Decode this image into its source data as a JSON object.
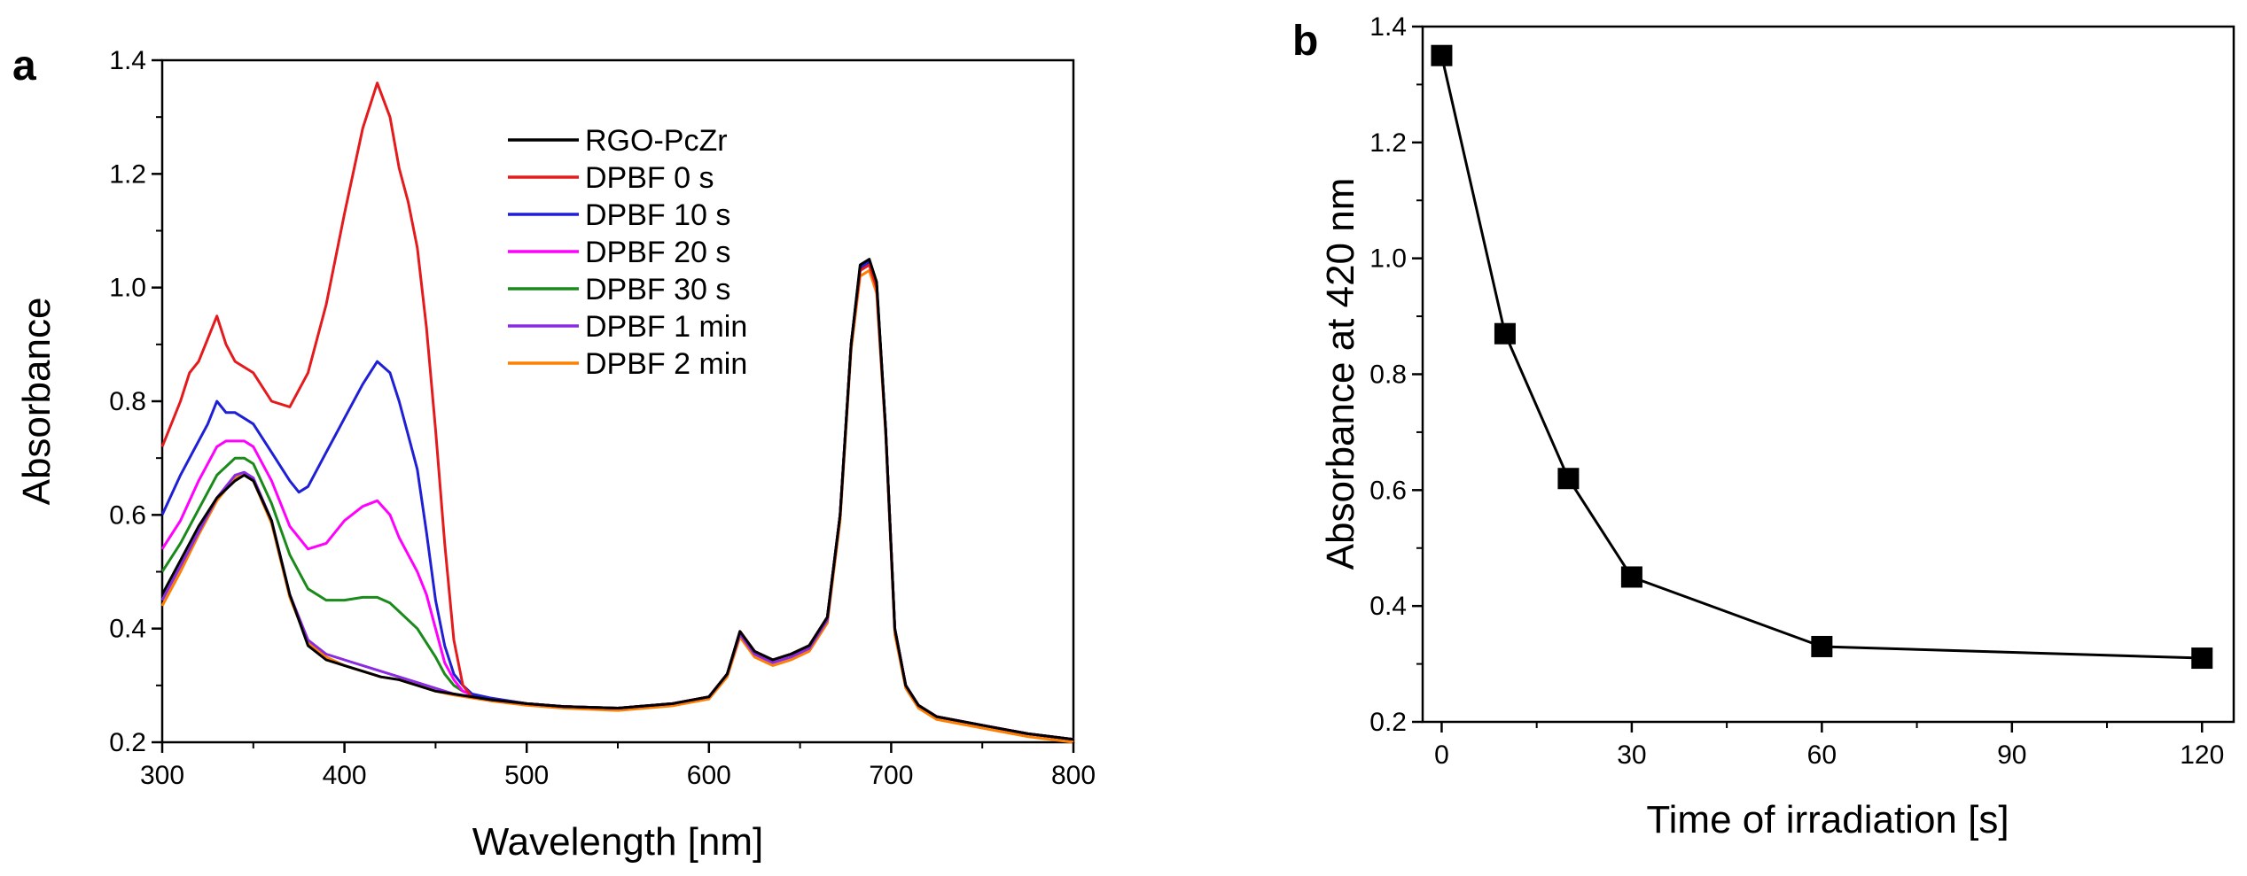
{
  "chart_data": [
    {
      "type": "line",
      "panel": "a",
      "title": "",
      "xlabel": "Wavelength [nm]",
      "ylabel": "Absorbance",
      "xlim": [
        300,
        800
      ],
      "ylim": [
        0.2,
        1.4
      ],
      "xticks": [
        300,
        400,
        500,
        600,
        700,
        800
      ],
      "yticks": [
        0.2,
        0.4,
        0.6,
        0.8,
        1.0,
        1.2,
        1.4
      ],
      "legend_position": "top-center",
      "series": [
        {
          "name": "RGO-PcZr",
          "color": "#000000",
          "x": [
            300,
            310,
            320,
            330,
            340,
            345,
            350,
            360,
            370,
            380,
            390,
            400,
            410,
            420,
            430,
            440,
            450,
            460,
            470,
            480,
            500,
            520,
            550,
            580,
            600,
            610,
            617,
            625,
            635,
            645,
            655,
            665,
            672,
            678,
            683,
            688,
            692,
            697,
            702,
            708,
            715,
            725,
            750,
            775,
            800
          ],
          "y": [
            0.46,
            0.52,
            0.58,
            0.63,
            0.66,
            0.67,
            0.66,
            0.59,
            0.46,
            0.37,
            0.345,
            0.335,
            0.325,
            0.315,
            0.31,
            0.3,
            0.29,
            0.285,
            0.28,
            0.275,
            0.268,
            0.263,
            0.26,
            0.268,
            0.28,
            0.32,
            0.395,
            0.36,
            0.345,
            0.355,
            0.37,
            0.42,
            0.6,
            0.9,
            1.04,
            1.05,
            1.01,
            0.75,
            0.4,
            0.3,
            0.265,
            0.245,
            0.23,
            0.215,
            0.205
          ]
        },
        {
          "name": "DPBF 0 s",
          "color": "#e41a1c",
          "x": [
            300,
            310,
            315,
            320,
            325,
            330,
            335,
            340,
            345,
            350,
            360,
            370,
            380,
            390,
            400,
            410,
            418,
            425,
            430,
            435,
            440,
            445,
            450,
            455,
            460,
            465,
            470,
            480,
            500,
            520,
            550,
            580,
            600,
            610,
            617,
            625,
            635,
            645,
            655,
            665,
            672,
            678,
            683,
            688,
            692,
            697,
            702,
            708,
            715,
            725,
            750,
            775,
            800
          ],
          "y": [
            0.72,
            0.8,
            0.85,
            0.87,
            0.91,
            0.95,
            0.9,
            0.87,
            0.86,
            0.85,
            0.8,
            0.79,
            0.85,
            0.97,
            1.13,
            1.28,
            1.36,
            1.3,
            1.21,
            1.15,
            1.07,
            0.93,
            0.75,
            0.55,
            0.38,
            0.3,
            0.28,
            0.275,
            0.268,
            0.263,
            0.26,
            0.268,
            0.28,
            0.32,
            0.395,
            0.36,
            0.345,
            0.355,
            0.37,
            0.42,
            0.6,
            0.9,
            1.03,
            1.04,
            1.0,
            0.75,
            0.4,
            0.3,
            0.265,
            0.245,
            0.23,
            0.215,
            0.205
          ]
        },
        {
          "name": "DPBF 10 s",
          "color": "#1f1fd6",
          "x": [
            300,
            310,
            320,
            325,
            330,
            335,
            340,
            345,
            350,
            360,
            370,
            375,
            380,
            390,
            400,
            410,
            418,
            425,
            430,
            435,
            440,
            445,
            450,
            455,
            460,
            465,
            470,
            480,
            500,
            520,
            550,
            580,
            600,
            610,
            617,
            625,
            635,
            645,
            655,
            665,
            672,
            678,
            683,
            688,
            692,
            697,
            702,
            708,
            715,
            725,
            750,
            775,
            800
          ],
          "y": [
            0.6,
            0.67,
            0.73,
            0.76,
            0.8,
            0.78,
            0.78,
            0.77,
            0.76,
            0.71,
            0.66,
            0.64,
            0.65,
            0.71,
            0.77,
            0.83,
            0.87,
            0.85,
            0.8,
            0.74,
            0.68,
            0.57,
            0.45,
            0.37,
            0.32,
            0.3,
            0.285,
            0.278,
            0.268,
            0.263,
            0.26,
            0.268,
            0.28,
            0.32,
            0.395,
            0.36,
            0.345,
            0.355,
            0.37,
            0.42,
            0.6,
            0.9,
            1.035,
            1.045,
            1.005,
            0.75,
            0.4,
            0.3,
            0.265,
            0.245,
            0.23,
            0.215,
            0.205
          ]
        },
        {
          "name": "DPBF 20 s",
          "color": "#ff00ff",
          "x": [
            300,
            310,
            320,
            330,
            335,
            340,
            345,
            350,
            360,
            370,
            380,
            390,
            400,
            410,
            418,
            425,
            430,
            435,
            440,
            445,
            450,
            455,
            460,
            465,
            470,
            480,
            500,
            520,
            550,
            580,
            600,
            610,
            617,
            625,
            635,
            645,
            655,
            665,
            672,
            678,
            683,
            688,
            692,
            697,
            702,
            708,
            715,
            725,
            750,
            775,
            800
          ],
          "y": [
            0.54,
            0.59,
            0.66,
            0.72,
            0.73,
            0.73,
            0.73,
            0.72,
            0.66,
            0.58,
            0.54,
            0.55,
            0.59,
            0.615,
            0.625,
            0.6,
            0.56,
            0.53,
            0.5,
            0.46,
            0.4,
            0.34,
            0.31,
            0.29,
            0.283,
            0.277,
            0.268,
            0.263,
            0.26,
            0.268,
            0.28,
            0.32,
            0.395,
            0.36,
            0.345,
            0.355,
            0.37,
            0.42,
            0.6,
            0.9,
            1.035,
            1.045,
            1.005,
            0.75,
            0.4,
            0.3,
            0.265,
            0.245,
            0.23,
            0.215,
            0.205
          ]
        },
        {
          "name": "DPBF 30 s",
          "color": "#1a8a1a",
          "x": [
            300,
            310,
            320,
            330,
            340,
            345,
            350,
            360,
            370,
            380,
            390,
            400,
            410,
            418,
            425,
            430,
            440,
            450,
            455,
            460,
            465,
            470,
            480,
            500,
            520,
            550,
            580,
            600,
            610,
            617,
            625,
            635,
            645,
            655,
            665,
            672,
            678,
            683,
            688,
            692,
            697,
            702,
            708,
            715,
            725,
            750,
            775,
            800
          ],
          "y": [
            0.5,
            0.55,
            0.61,
            0.67,
            0.7,
            0.7,
            0.69,
            0.62,
            0.53,
            0.47,
            0.45,
            0.45,
            0.455,
            0.455,
            0.445,
            0.43,
            0.4,
            0.35,
            0.32,
            0.3,
            0.29,
            0.283,
            0.277,
            0.268,
            0.263,
            0.26,
            0.268,
            0.28,
            0.32,
            0.395,
            0.36,
            0.345,
            0.355,
            0.37,
            0.42,
            0.6,
            0.9,
            1.035,
            1.045,
            1.005,
            0.75,
            0.4,
            0.3,
            0.265,
            0.245,
            0.23,
            0.215,
            0.205
          ]
        },
        {
          "name": "DPBF 1 min",
          "color": "#8a2be2",
          "x": [
            300,
            310,
            320,
            330,
            340,
            345,
            350,
            360,
            370,
            380,
            390,
            400,
            410,
            420,
            430,
            440,
            450,
            460,
            470,
            480,
            500,
            520,
            550,
            580,
            600,
            610,
            617,
            625,
            635,
            645,
            655,
            665,
            672,
            678,
            683,
            688,
            692,
            697,
            702,
            708,
            715,
            725,
            750,
            775,
            800
          ],
          "y": [
            0.45,
            0.51,
            0.57,
            0.63,
            0.67,
            0.675,
            0.665,
            0.59,
            0.46,
            0.38,
            0.355,
            0.345,
            0.335,
            0.325,
            0.315,
            0.305,
            0.295,
            0.285,
            0.28,
            0.275,
            0.268,
            0.263,
            0.26,
            0.268,
            0.28,
            0.32,
            0.39,
            0.355,
            0.34,
            0.35,
            0.365,
            0.415,
            0.6,
            0.9,
            1.03,
            1.04,
            1.0,
            0.75,
            0.4,
            0.3,
            0.265,
            0.245,
            0.23,
            0.215,
            0.205
          ]
        },
        {
          "name": "DPBF 2 min",
          "color": "#ff8000",
          "x": [
            300,
            310,
            320,
            330,
            340,
            345,
            350,
            360,
            370,
            380,
            390,
            400,
            410,
            420,
            430,
            440,
            450,
            460,
            470,
            480,
            500,
            520,
            550,
            580,
            600,
            610,
            617,
            625,
            635,
            645,
            655,
            665,
            672,
            678,
            683,
            688,
            692,
            697,
            702,
            708,
            715,
            725,
            750,
            775,
            800
          ],
          "y": [
            0.44,
            0.5,
            0.565,
            0.625,
            0.665,
            0.67,
            0.66,
            0.585,
            0.455,
            0.375,
            0.35,
            0.335,
            0.325,
            0.315,
            0.31,
            0.3,
            0.29,
            0.283,
            0.278,
            0.273,
            0.265,
            0.26,
            0.256,
            0.264,
            0.276,
            0.315,
            0.385,
            0.35,
            0.335,
            0.345,
            0.36,
            0.41,
            0.59,
            0.89,
            1.02,
            1.03,
            0.99,
            0.74,
            0.39,
            0.295,
            0.26,
            0.24,
            0.225,
            0.21,
            0.2
          ]
        }
      ]
    },
    {
      "type": "line",
      "panel": "b",
      "title": "",
      "xlabel": "Time of irradiation [s]",
      "ylabel": "Absorbance at 420 nm",
      "xlim": [
        -3,
        125
      ],
      "ylim": [
        0.2,
        1.4
      ],
      "xticks": [
        0,
        30,
        60,
        90,
        120
      ],
      "yticks": [
        0.2,
        0.4,
        0.6,
        0.8,
        1.0,
        1.2,
        1.4
      ],
      "marker": "square",
      "series": [
        {
          "name": "Absorbance at 420 nm",
          "color": "#000000",
          "x": [
            0,
            10,
            20,
            30,
            60,
            120
          ],
          "y": [
            1.35,
            0.87,
            0.62,
            0.45,
            0.33,
            0.31
          ]
        }
      ]
    }
  ]
}
